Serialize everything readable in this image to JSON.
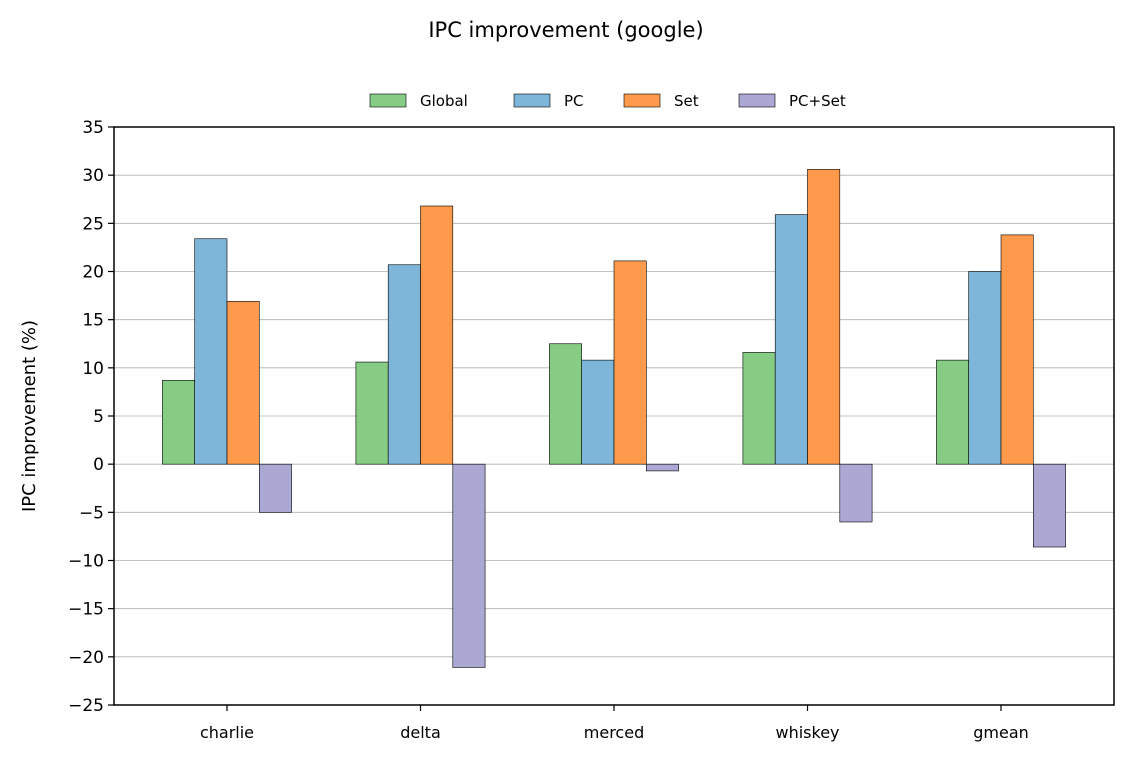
{
  "chart_data": {
    "type": "bar",
    "title": "IPC improvement (google)",
    "xlabel": "",
    "ylabel": "IPC improvement (%)",
    "categories": [
      "charlie",
      "delta",
      "merced",
      "whiskey",
      "gmean"
    ],
    "series": [
      {
        "name": "Global",
        "color": "#86cc85",
        "values": [
          8.7,
          10.6,
          12.5,
          11.6,
          10.8
        ]
      },
      {
        "name": "PC",
        "color": "#7eb6d9",
        "values": [
          23.4,
          20.7,
          10.8,
          25.9,
          20.0
        ]
      },
      {
        "name": "Set",
        "color": "#ff9a4d",
        "values": [
          16.9,
          26.8,
          21.1,
          30.6,
          23.8
        ]
      },
      {
        "name": "PC+Set",
        "color": "#aba8d3",
        "values": [
          -5.0,
          -21.1,
          -0.7,
          -6.0,
          -8.6
        ]
      }
    ],
    "ylim": [
      -25,
      35
    ],
    "yticks": [
      -25,
      -20,
      -15,
      -10,
      -5,
      0,
      5,
      10,
      15,
      20,
      25,
      30,
      35
    ],
    "ytick_labels": [
      "−25",
      "−20",
      "−15",
      "−10",
      "−5",
      "0",
      "5",
      "10",
      "15",
      "20",
      "25",
      "30",
      "35"
    ],
    "grid": true,
    "legend": "top-center"
  }
}
